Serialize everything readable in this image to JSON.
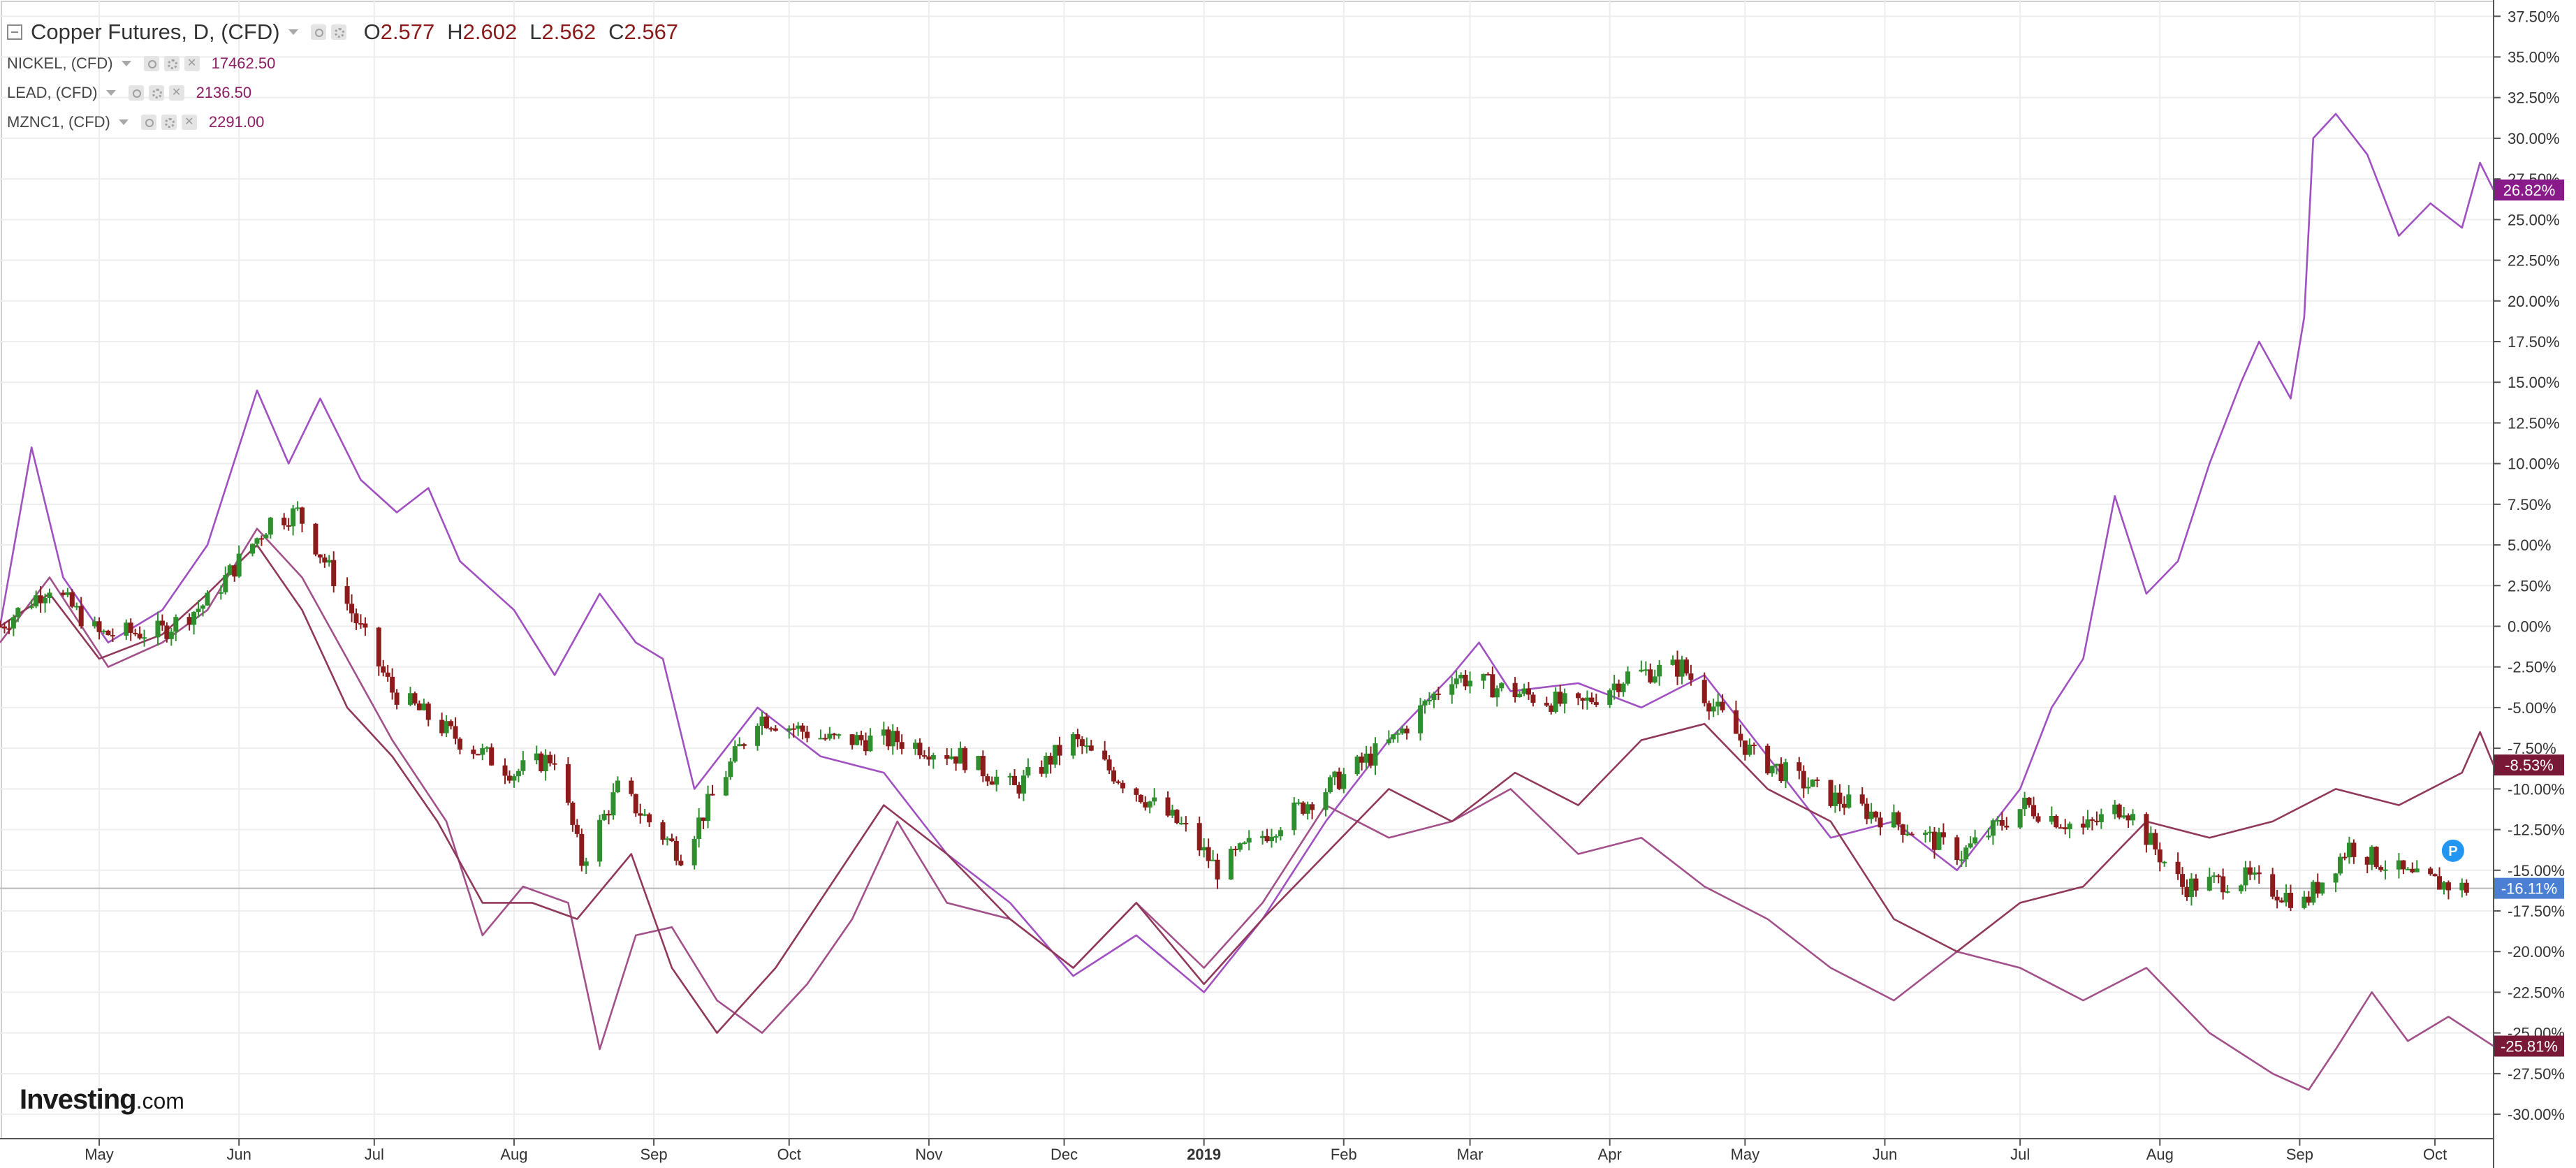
{
  "legend": {
    "main": {
      "title": "Copper Futures, D, (CFD)",
      "o_label": "O",
      "o_value": "2.577",
      "h_label": "H",
      "h_value": "2.602",
      "l_label": "L",
      "l_value": "2.562",
      "c_label": "C",
      "c_value": "2.567"
    },
    "nickel": {
      "label": "NICKEL, (CFD)",
      "value": "17462.50"
    },
    "lead": {
      "label": "LEAD, (CFD)",
      "value": "2136.50"
    },
    "zinc": {
      "label": "MZNC1, (CFD)",
      "value": "2291.00"
    }
  },
  "icons": {
    "collapse": "minus-square-icon",
    "dropdown": "caret-down-icon",
    "visibility": "eye-icon",
    "settings": "gear-icon",
    "remove": "close-icon",
    "marker": "p-marker-icon"
  },
  "logo": {
    "brand": "Investing",
    "suffix": ".com"
  },
  "colors": {
    "candle_up": "#2f8f2f",
    "candle_down": "#8c1c1c",
    "nickel": "#a050c0",
    "lead": "#a2508a",
    "zinc": "#90385a",
    "badge_nickel": "#8a1a8a",
    "badge_lead": "#7a1838",
    "badge_zinc": "#7a1838",
    "badge_copper": "#4a7fd4",
    "marker": "#2196f3"
  },
  "chart_data": {
    "type": "line",
    "x_start": "2018-04-09",
    "x_end": "2019-10-14",
    "ylim": [
      -31.5,
      38.5
    ],
    "grid": true,
    "y_ticks": [
      37.5,
      35,
      32.5,
      30,
      27.5,
      25,
      22.5,
      20,
      17.5,
      15,
      12.5,
      10,
      7.5,
      5,
      2.5,
      0,
      -2.5,
      -5,
      -7.5,
      -10,
      -12.5,
      -15,
      -17.5,
      -20,
      -22.5,
      -25,
      -27.5,
      -30
    ],
    "y_tick_labels": [
      "37.50%",
      "35.00%",
      "32.50%",
      "30.00%",
      "27.50%",
      "25.00%",
      "22.50%",
      "20.00%",
      "17.50%",
      "15.00%",
      "12.50%",
      "10.00%",
      "7.50%",
      "5.00%",
      "2.50%",
      "0.00%",
      "-2.50%",
      "-5.00%",
      "-7.50%",
      "-10.00%",
      "-12.50%",
      "-15.00%",
      "-17.50%",
      "-20.00%",
      "-22.50%",
      "-25.00%",
      "-27.50%",
      "-30.00%"
    ],
    "x_ticks": [
      {
        "date": "2018-05-01",
        "label": "May",
        "bold": false
      },
      {
        "date": "2018-06-01",
        "label": "Jun",
        "bold": false
      },
      {
        "date": "2018-07-01",
        "label": "Jul",
        "bold": false
      },
      {
        "date": "2018-08-01",
        "label": "Aug",
        "bold": false
      },
      {
        "date": "2018-09-01",
        "label": "Sep",
        "bold": false
      },
      {
        "date": "2018-10-01",
        "label": "Oct",
        "bold": false
      },
      {
        "date": "2018-11-01",
        "label": "Nov",
        "bold": false
      },
      {
        "date": "2018-12-01",
        "label": "Dec",
        "bold": false
      },
      {
        "date": "2019-01-01",
        "label": "2019",
        "bold": true
      },
      {
        "date": "2019-02-01",
        "label": "Feb",
        "bold": false
      },
      {
        "date": "2019-03-01",
        "label": "Mar",
        "bold": false
      },
      {
        "date": "2019-04-01",
        "label": "Apr",
        "bold": false
      },
      {
        "date": "2019-05-01",
        "label": "May",
        "bold": false
      },
      {
        "date": "2019-06-01",
        "label": "Jun",
        "bold": false
      },
      {
        "date": "2019-07-01",
        "label": "Jul",
        "bold": false
      },
      {
        "date": "2019-08-01",
        "label": "Aug",
        "bold": false
      },
      {
        "date": "2019-09-01",
        "label": "Sep",
        "bold": false
      },
      {
        "date": "2019-10-01",
        "label": "Oct",
        "bold": false
      }
    ],
    "current_line": -16.11,
    "badges": [
      {
        "series": "nickel",
        "value": 26.82,
        "label": "26.82%"
      },
      {
        "series": "zinc",
        "value": -8.53,
        "label": "-8.53%"
      },
      {
        "series": "copper",
        "value": -16.11,
        "label": "-16.11%"
      },
      {
        "series": "lead",
        "value": -25.81,
        "label": "-25.81%"
      }
    ],
    "candles": {
      "series": "copper",
      "interval": "D",
      "keys": [
        {
          "x": "2018-04-09",
          "y": 0
        },
        {
          "x": "2018-04-20",
          "y": 2.5
        },
        {
          "x": "2018-05-01",
          "y": -0.5
        },
        {
          "x": "2018-05-15",
          "y": -0.3
        },
        {
          "x": "2018-05-25",
          "y": 1.5
        },
        {
          "x": "2018-06-08",
          "y": 6.5
        },
        {
          "x": "2018-06-14",
          "y": 7
        },
        {
          "x": "2018-06-22",
          "y": 3
        },
        {
          "x": "2018-07-05",
          "y": -4
        },
        {
          "x": "2018-07-20",
          "y": -7
        },
        {
          "x": "2018-08-01",
          "y": -9
        },
        {
          "x": "2018-08-10",
          "y": -8
        },
        {
          "x": "2018-08-16",
          "y": -14.5
        },
        {
          "x": "2018-08-24",
          "y": -10
        },
        {
          "x": "2018-09-07",
          "y": -14
        },
        {
          "x": "2018-09-17",
          "y": -9
        },
        {
          "x": "2018-09-24",
          "y": -5.5
        },
        {
          "x": "2018-10-10",
          "y": -7
        },
        {
          "x": "2018-10-25",
          "y": -7
        },
        {
          "x": "2018-11-08",
          "y": -8
        },
        {
          "x": "2018-11-20",
          "y": -10
        },
        {
          "x": "2018-12-03",
          "y": -7
        },
        {
          "x": "2018-12-14",
          "y": -9.5
        },
        {
          "x": "2018-12-28",
          "y": -12.5
        },
        {
          "x": "2019-01-04",
          "y": -15
        },
        {
          "x": "2019-01-18",
          "y": -12
        },
        {
          "x": "2019-01-28",
          "y": -10
        },
        {
          "x": "2019-02-12",
          "y": -7
        },
        {
          "x": "2019-02-25",
          "y": -3
        },
        {
          "x": "2019-03-10",
          "y": -4
        },
        {
          "x": "2019-03-25",
          "y": -5
        },
        {
          "x": "2019-04-05",
          "y": -3
        },
        {
          "x": "2019-04-17",
          "y": -2.5
        },
        {
          "x": "2019-05-03",
          "y": -8
        },
        {
          "x": "2019-05-20",
          "y": -10.5
        },
        {
          "x": "2019-06-03",
          "y": -12
        },
        {
          "x": "2019-06-18",
          "y": -14
        },
        {
          "x": "2019-07-02",
          "y": -11
        },
        {
          "x": "2019-07-15",
          "y": -12.5
        },
        {
          "x": "2019-07-24",
          "y": -11
        },
        {
          "x": "2019-08-06",
          "y": -16
        },
        {
          "x": "2019-08-20",
          "y": -15.5
        },
        {
          "x": "2019-09-02",
          "y": -17
        },
        {
          "x": "2019-09-12",
          "y": -13.5
        },
        {
          "x": "2019-09-26",
          "y": -15.5
        },
        {
          "x": "2019-10-08",
          "y": -16.11
        }
      ]
    },
    "series": [
      {
        "key": "nickel",
        "points": [
          {
            "x": "2018-04-09",
            "y": 0
          },
          {
            "x": "2018-04-16",
            "y": 11
          },
          {
            "x": "2018-04-23",
            "y": 3
          },
          {
            "x": "2018-05-03",
            "y": -1
          },
          {
            "x": "2018-05-15",
            "y": 1
          },
          {
            "x": "2018-05-25",
            "y": 5
          },
          {
            "x": "2018-06-05",
            "y": 14.5
          },
          {
            "x": "2018-06-12",
            "y": 10
          },
          {
            "x": "2018-06-19",
            "y": 14
          },
          {
            "x": "2018-06-28",
            "y": 9
          },
          {
            "x": "2018-07-06",
            "y": 7
          },
          {
            "x": "2018-07-13",
            "y": 8.5
          },
          {
            "x": "2018-07-20",
            "y": 4
          },
          {
            "x": "2018-08-01",
            "y": 1
          },
          {
            "x": "2018-08-10",
            "y": -3
          },
          {
            "x": "2018-08-20",
            "y": 2
          },
          {
            "x": "2018-08-28",
            "y": -1
          },
          {
            "x": "2018-09-03",
            "y": -2
          },
          {
            "x": "2018-09-10",
            "y": -10
          },
          {
            "x": "2018-09-24",
            "y": -5
          },
          {
            "x": "2018-10-08",
            "y": -8
          },
          {
            "x": "2018-10-22",
            "y": -9
          },
          {
            "x": "2018-11-05",
            "y": -14
          },
          {
            "x": "2018-11-19",
            "y": -17
          },
          {
            "x": "2018-12-03",
            "y": -21.5
          },
          {
            "x": "2018-12-17",
            "y": -19
          },
          {
            "x": "2019-01-01",
            "y": -22.5
          },
          {
            "x": "2019-01-14",
            "y": -18
          },
          {
            "x": "2019-01-28",
            "y": -12
          },
          {
            "x": "2019-02-11",
            "y": -7
          },
          {
            "x": "2019-02-25",
            "y": -3
          },
          {
            "x": "2019-03-03",
            "y": -1
          },
          {
            "x": "2019-03-10",
            "y": -4
          },
          {
            "x": "2019-03-25",
            "y": -3.5
          },
          {
            "x": "2019-04-08",
            "y": -5
          },
          {
            "x": "2019-04-22",
            "y": -3
          },
          {
            "x": "2019-05-06",
            "y": -8
          },
          {
            "x": "2019-05-20",
            "y": -13
          },
          {
            "x": "2019-06-03",
            "y": -12
          },
          {
            "x": "2019-06-17",
            "y": -15
          },
          {
            "x": "2019-07-01",
            "y": -10
          },
          {
            "x": "2019-07-08",
            "y": -5
          },
          {
            "x": "2019-07-15",
            "y": -2
          },
          {
            "x": "2019-07-22",
            "y": 8
          },
          {
            "x": "2019-07-29",
            "y": 2
          },
          {
            "x": "2019-08-05",
            "y": 4
          },
          {
            "x": "2019-08-12",
            "y": 10
          },
          {
            "x": "2019-08-19",
            "y": 15
          },
          {
            "x": "2019-08-23",
            "y": 17.5
          },
          {
            "x": "2019-08-30",
            "y": 14
          },
          {
            "x": "2019-09-02",
            "y": 19
          },
          {
            "x": "2019-09-04",
            "y": 30
          },
          {
            "x": "2019-09-09",
            "y": 31.5
          },
          {
            "x": "2019-09-16",
            "y": 29
          },
          {
            "x": "2019-09-23",
            "y": 24
          },
          {
            "x": "2019-09-30",
            "y": 26
          },
          {
            "x": "2019-10-07",
            "y": 24.5
          },
          {
            "x": "2019-10-11",
            "y": 28.5
          },
          {
            "x": "2019-10-14",
            "y": 26.82
          }
        ]
      },
      {
        "key": "lead",
        "points": [
          {
            "x": "2018-04-09",
            "y": -1
          },
          {
            "x": "2018-04-20",
            "y": 3
          },
          {
            "x": "2018-05-03",
            "y": -2.5
          },
          {
            "x": "2018-05-15",
            "y": -1
          },
          {
            "x": "2018-05-25",
            "y": 1
          },
          {
            "x": "2018-06-05",
            "y": 6
          },
          {
            "x": "2018-06-15",
            "y": 3
          },
          {
            "x": "2018-06-25",
            "y": -2
          },
          {
            "x": "2018-07-05",
            "y": -7
          },
          {
            "x": "2018-07-17",
            "y": -12
          },
          {
            "x": "2018-07-25",
            "y": -19
          },
          {
            "x": "2018-08-03",
            "y": -16
          },
          {
            "x": "2018-08-13",
            "y": -17
          },
          {
            "x": "2018-08-20",
            "y": -26
          },
          {
            "x": "2018-08-28",
            "y": -19
          },
          {
            "x": "2018-09-05",
            "y": -18.5
          },
          {
            "x": "2018-09-15",
            "y": -23
          },
          {
            "x": "2018-09-25",
            "y": -25
          },
          {
            "x": "2018-10-05",
            "y": -22
          },
          {
            "x": "2018-10-15",
            "y": -18
          },
          {
            "x": "2018-10-25",
            "y": -12
          },
          {
            "x": "2018-11-05",
            "y": -17
          },
          {
            "x": "2018-11-19",
            "y": -18
          },
          {
            "x": "2018-12-03",
            "y": -21
          },
          {
            "x": "2018-12-17",
            "y": -17
          },
          {
            "x": "2019-01-01",
            "y": -21
          },
          {
            "x": "2019-01-14",
            "y": -17
          },
          {
            "x": "2019-01-28",
            "y": -11
          },
          {
            "x": "2019-02-11",
            "y": -13
          },
          {
            "x": "2019-02-25",
            "y": -12
          },
          {
            "x": "2019-03-10",
            "y": -10
          },
          {
            "x": "2019-03-25",
            "y": -14
          },
          {
            "x": "2019-04-08",
            "y": -13
          },
          {
            "x": "2019-04-22",
            "y": -16
          },
          {
            "x": "2019-05-06",
            "y": -18
          },
          {
            "x": "2019-05-20",
            "y": -21
          },
          {
            "x": "2019-06-03",
            "y": -23
          },
          {
            "x": "2019-06-17",
            "y": -20
          },
          {
            "x": "2019-07-01",
            "y": -21
          },
          {
            "x": "2019-07-15",
            "y": -23
          },
          {
            "x": "2019-07-29",
            "y": -21
          },
          {
            "x": "2019-08-12",
            "y": -25
          },
          {
            "x": "2019-08-26",
            "y": -27.5
          },
          {
            "x": "2019-09-03",
            "y": -28.5
          },
          {
            "x": "2019-09-09",
            "y": -26
          },
          {
            "x": "2019-09-17",
            "y": -22.5
          },
          {
            "x": "2019-09-25",
            "y": -25.5
          },
          {
            "x": "2019-10-04",
            "y": -24
          },
          {
            "x": "2019-10-14",
            "y": -25.81
          }
        ]
      },
      {
        "key": "zinc",
        "points": [
          {
            "x": "2018-04-09",
            "y": 0
          },
          {
            "x": "2018-04-20",
            "y": 2
          },
          {
            "x": "2018-05-01",
            "y": -2
          },
          {
            "x": "2018-05-15",
            "y": -0.5
          },
          {
            "x": "2018-05-25",
            "y": 2
          },
          {
            "x": "2018-06-05",
            "y": 5
          },
          {
            "x": "2018-06-15",
            "y": 1
          },
          {
            "x": "2018-06-25",
            "y": -5
          },
          {
            "x": "2018-07-05",
            "y": -8
          },
          {
            "x": "2018-07-15",
            "y": -12
          },
          {
            "x": "2018-07-25",
            "y": -17
          },
          {
            "x": "2018-08-05",
            "y": -17
          },
          {
            "x": "2018-08-15",
            "y": -18
          },
          {
            "x": "2018-08-27",
            "y": -14
          },
          {
            "x": "2018-09-05",
            "y": -21
          },
          {
            "x": "2018-09-15",
            "y": -25
          },
          {
            "x": "2018-09-28",
            "y": -21
          },
          {
            "x": "2018-10-10",
            "y": -16
          },
          {
            "x": "2018-10-22",
            "y": -11
          },
          {
            "x": "2018-11-05",
            "y": -14
          },
          {
            "x": "2018-11-19",
            "y": -18
          },
          {
            "x": "2018-12-03",
            "y": -21
          },
          {
            "x": "2018-12-17",
            "y": -17
          },
          {
            "x": "2019-01-01",
            "y": -22
          },
          {
            "x": "2019-01-14",
            "y": -18
          },
          {
            "x": "2019-01-28",
            "y": -14
          },
          {
            "x": "2019-02-11",
            "y": -10
          },
          {
            "x": "2019-02-25",
            "y": -12
          },
          {
            "x": "2019-03-11",
            "y": -9
          },
          {
            "x": "2019-03-25",
            "y": -11
          },
          {
            "x": "2019-04-08",
            "y": -7
          },
          {
            "x": "2019-04-22",
            "y": -6
          },
          {
            "x": "2019-05-06",
            "y": -10
          },
          {
            "x": "2019-05-20",
            "y": -12
          },
          {
            "x": "2019-06-03",
            "y": -18
          },
          {
            "x": "2019-06-17",
            "y": -20
          },
          {
            "x": "2019-07-01",
            "y": -17
          },
          {
            "x": "2019-07-15",
            "y": -16
          },
          {
            "x": "2019-07-29",
            "y": -12
          },
          {
            "x": "2019-08-12",
            "y": -13
          },
          {
            "x": "2019-08-26",
            "y": -12
          },
          {
            "x": "2019-09-09",
            "y": -10
          },
          {
            "x": "2019-09-23",
            "y": -11
          },
          {
            "x": "2019-10-07",
            "y": -9
          },
          {
            "x": "2019-10-11",
            "y": -6.5
          },
          {
            "x": "2019-10-14",
            "y": -8.53
          }
        ]
      }
    ]
  }
}
